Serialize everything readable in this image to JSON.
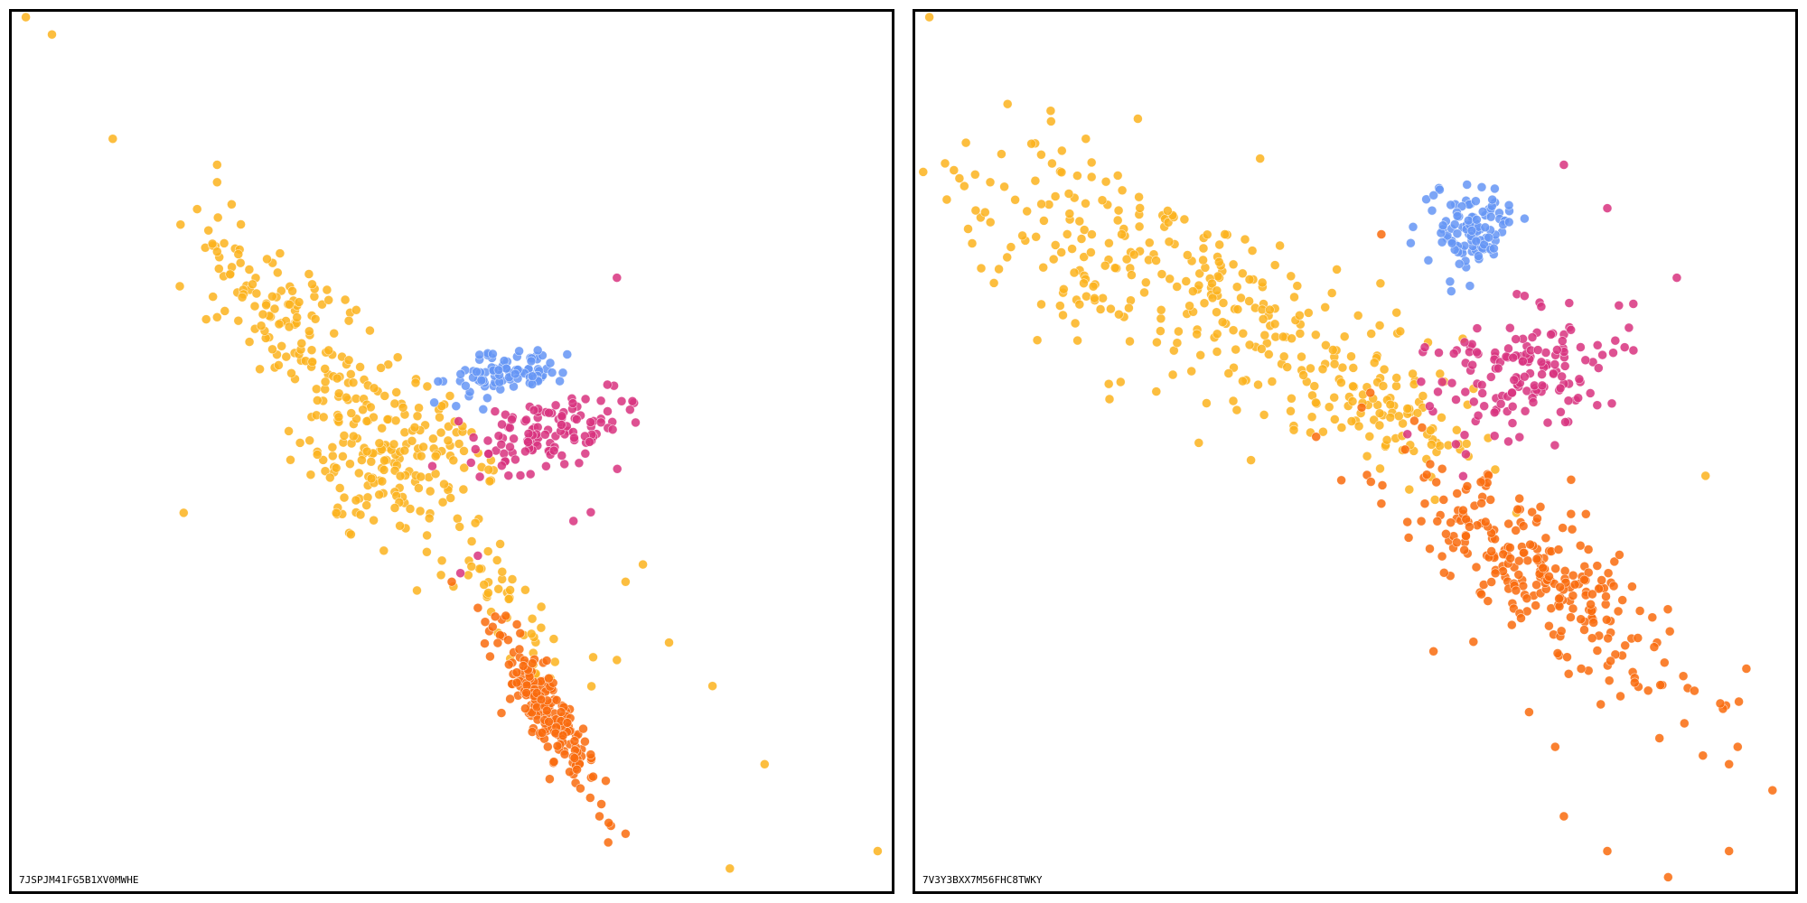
{
  "colors": {
    "yellow": "#fbb31d",
    "blue": "#6595f5",
    "magenta": "#d8327f",
    "orange": "#f96b0d"
  },
  "panels": [
    {
      "label": "7JSPJM41FG5B1XV0MWHE"
    },
    {
      "label": "7V3Y3BXX7M56FHC8TWKY"
    }
  ],
  "chart_data": [
    {
      "type": "scatter",
      "title": "",
      "xlabel": "",
      "ylabel": "",
      "xlim": [
        0,
        1
      ],
      "ylim": [
        0,
        1
      ],
      "grid": false,
      "legend": "none",
      "series": [
        {
          "color_key": "yellow",
          "clusters": [
            {
              "x": 0.43,
              "y": 0.5,
              "sx": 0.06,
              "sy": 0.055,
              "rot": -0.9,
              "n": 200
            },
            {
              "x": 0.3,
              "y": 0.66,
              "sx": 0.06,
              "sy": 0.03,
              "rot": -0.9,
              "n": 120
            },
            {
              "x": 0.56,
              "y": 0.33,
              "sx": 0.06,
              "sy": 0.02,
              "rot": -0.9,
              "n": 50
            }
          ],
          "points": [
            [
              0.01,
              1.0
            ],
            [
              0.04,
              0.98
            ],
            [
              0.11,
              0.86
            ],
            [
              0.23,
              0.83
            ],
            [
              0.23,
              0.81
            ],
            [
              0.23,
              0.73
            ],
            [
              0.82,
              0.02
            ],
            [
              0.99,
              0.04
            ],
            [
              0.86,
              0.14
            ],
            [
              0.8,
              0.23
            ],
            [
              0.75,
              0.28
            ],
            [
              0.72,
              0.37
            ],
            [
              0.7,
              0.35
            ],
            [
              0.69,
              0.26
            ],
            [
              0.46,
              0.34
            ],
            [
              0.36,
              0.47
            ]
          ]
        },
        {
          "color_key": "blue",
          "clusters": [
            {
              "x": 0.56,
              "y": 0.59,
              "sx": 0.012,
              "sy": 0.03,
              "rot": -1.3,
              "n": 90
            }
          ],
          "points": []
        },
        {
          "color_key": "magenta",
          "clusters": [
            {
              "x": 0.61,
              "y": 0.52,
              "sx": 0.02,
              "sy": 0.05,
              "rot": -1.3,
              "n": 120
            }
          ],
          "points": [
            [
              0.69,
              0.7
            ],
            [
              0.53,
              0.38
            ],
            [
              0.64,
              0.42
            ],
            [
              0.66,
              0.43
            ],
            [
              0.51,
              0.36
            ]
          ]
        },
        {
          "color_key": "orange",
          "clusters": [
            {
              "x": 0.61,
              "y": 0.2,
              "sx": 0.05,
              "sy": 0.012,
              "rot": -1.05,
              "n": 200
            }
          ],
          "points": [
            [
              0.68,
              0.05
            ],
            [
              0.7,
              0.06
            ],
            [
              0.67,
              0.08
            ],
            [
              0.55,
              0.31
            ],
            [
              0.53,
              0.32
            ],
            [
              0.5,
              0.35
            ]
          ]
        }
      ]
    },
    {
      "type": "scatter",
      "title": "",
      "xlabel": "",
      "ylabel": "",
      "xlim": [
        0,
        1
      ],
      "ylim": [
        0,
        1
      ],
      "grid": false,
      "legend": "none",
      "series": [
        {
          "color_key": "yellow",
          "clusters": [
            {
              "x": 0.29,
              "y": 0.69,
              "sx": 0.16,
              "sy": 0.05,
              "rot": -0.45,
              "n": 300
            },
            {
              "x": 0.52,
              "y": 0.55,
              "sx": 0.07,
              "sy": 0.03,
              "rot": -0.45,
              "n": 80
            }
          ],
          "points": [
            [
              0.01,
              1.0
            ],
            [
              0.03,
              0.79
            ],
            [
              0.1,
              0.9
            ],
            [
              0.15,
              0.88
            ],
            [
              0.08,
              0.81
            ],
            [
              0.19,
              0.86
            ],
            [
              0.35,
              0.75
            ],
            [
              0.09,
              0.71
            ],
            [
              0.23,
              0.58
            ],
            [
              0.32,
              0.51
            ],
            [
              0.38,
              0.49
            ]
          ]
        },
        {
          "color_key": "blue",
          "clusters": [
            {
              "x": 0.63,
              "y": 0.76,
              "sx": 0.028,
              "sy": 0.025,
              "rot": 0.2,
              "n": 110
            }
          ],
          "points": []
        },
        {
          "color_key": "magenta",
          "clusters": [
            {
              "x": 0.69,
              "y": 0.59,
              "sx": 0.04,
              "sy": 0.055,
              "rot": -1.2,
              "n": 150
            }
          ],
          "points": [
            [
              0.74,
              0.83
            ],
            [
              0.79,
              0.78
            ],
            [
              0.87,
              0.7
            ],
            [
              0.82,
              0.67
            ],
            [
              0.81,
              0.62
            ],
            [
              0.58,
              0.62
            ],
            [
              0.56,
              0.52
            ],
            [
              0.6,
              0.58
            ]
          ]
        },
        {
          "color_key": "orange",
          "clusters": [
            {
              "x": 0.71,
              "y": 0.36,
              "sx": 0.1,
              "sy": 0.035,
              "rot": -0.65,
              "n": 260
            }
          ],
          "points": [
            [
              0.53,
              0.75
            ],
            [
              0.98,
              0.11
            ],
            [
              0.94,
              0.16
            ],
            [
              0.93,
              0.14
            ],
            [
              0.9,
              0.15
            ],
            [
              0.92,
              0.21
            ],
            [
              0.95,
              0.25
            ],
            [
              0.85,
              0.17
            ],
            [
              0.74,
              0.08
            ],
            [
              0.79,
              0.04
            ],
            [
              0.86,
              0.01
            ],
            [
              0.93,
              0.04
            ],
            [
              0.73,
              0.16
            ],
            [
              0.59,
              0.27
            ],
            [
              0.58,
              0.44
            ],
            [
              0.53,
              0.44
            ],
            [
              0.6,
              0.48
            ],
            [
              0.76,
              0.25
            ],
            [
              0.7,
              0.2
            ]
          ]
        }
      ]
    }
  ]
}
